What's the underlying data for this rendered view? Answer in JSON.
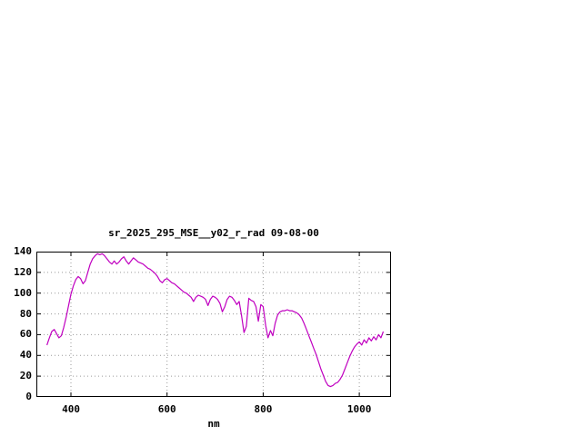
{
  "page": {
    "background": "#ffffff"
  },
  "chart_data": {
    "type": "line",
    "title": "sr_2025_295_MSE__y02_r_rad 09-08-00",
    "xlabel": "nm",
    "ylabel": "",
    "xlim": [
      328,
      1066
    ],
    "ylim": [
      0,
      140
    ],
    "xticks": [
      400,
      600,
      800,
      1000
    ],
    "yticks": [
      0,
      20,
      40,
      60,
      80,
      100,
      120,
      140
    ],
    "grid": true,
    "legend_position": "none",
    "line_color": "#c000c0",
    "series": [
      {
        "x": [
          350,
          355,
          360,
          365,
          370,
          375,
          380,
          385,
          390,
          395,
          400,
          405,
          410,
          415,
          420,
          425,
          430,
          435,
          440,
          445,
          450,
          455,
          460,
          465,
          470,
          475,
          480,
          485,
          490,
          495,
          500,
          505,
          510,
          515,
          520,
          525,
          530,
          535,
          540,
          545,
          550,
          555,
          560,
          565,
          570,
          575,
          580,
          585,
          590,
          595,
          600,
          605,
          610,
          615,
          620,
          625,
          630,
          635,
          640,
          645,
          650,
          655,
          660,
          665,
          670,
          675,
          680,
          685,
          690,
          695,
          700,
          705,
          710,
          715,
          720,
          725,
          730,
          735,
          740,
          745,
          750,
          755,
          760,
          765,
          770,
          775,
          780,
          785,
          790,
          795,
          800,
          805,
          810,
          815,
          820,
          825,
          830,
          835,
          840,
          845,
          850,
          855,
          860,
          865,
          870,
          875,
          880,
          885,
          890,
          895,
          900,
          905,
          910,
          915,
          920,
          925,
          930,
          935,
          940,
          945,
          950,
          955,
          960,
          965,
          970,
          975,
          980,
          985,
          990,
          995,
          1000,
          1005,
          1010,
          1015,
          1020,
          1025,
          1030,
          1035,
          1040,
          1045,
          1050
        ],
        "y": [
          50,
          57,
          63,
          65,
          61,
          57,
          59,
          67,
          77,
          88,
          99,
          107,
          113,
          116,
          114,
          109,
          112,
          120,
          128,
          133,
          136,
          138,
          137,
          138,
          136,
          133,
          130,
          128,
          131,
          128,
          130,
          133,
          135,
          131,
          128,
          131,
          134,
          132,
          130,
          129,
          128,
          126,
          124,
          123,
          121,
          119,
          116,
          112,
          110,
          113,
          114,
          112,
          110,
          109,
          107,
          105,
          103,
          101,
          100,
          98,
          96,
          92,
          96,
          98,
          97,
          96,
          94,
          88,
          94,
          97,
          96,
          94,
          90,
          82,
          87,
          94,
          97,
          96,
          93,
          89,
          92,
          78,
          62,
          68,
          95,
          93,
          92,
          87,
          73,
          89,
          87,
          69,
          57,
          64,
          59,
          71,
          79,
          82,
          83,
          83,
          84,
          83,
          83,
          82,
          81,
          79,
          76,
          71,
          65,
          59,
          53,
          47,
          41,
          34,
          27,
          21,
          15,
          11,
          10,
          11,
          13,
          14,
          17,
          21,
          27,
          33,
          39,
          44,
          48,
          51,
          53,
          50,
          55,
          52,
          57,
          54,
          58,
          55,
          60,
          57,
          63
        ]
      }
    ]
  }
}
